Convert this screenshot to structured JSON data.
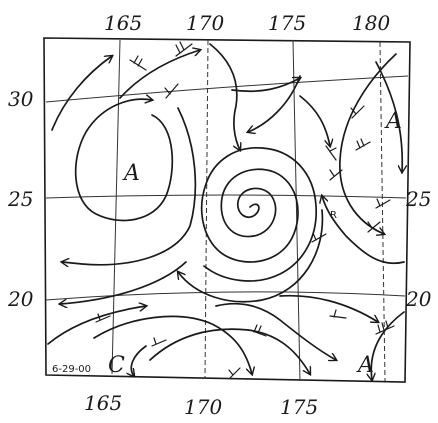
{
  "map": {
    "top_longitudes": [
      "165",
      "170",
      "175",
      "180"
    ],
    "bottom_longitudes": [
      "165",
      "170",
      "175"
    ],
    "left_latitudes": [
      "30",
      "25",
      "20"
    ],
    "right_latitudes": [
      "25",
      "20"
    ],
    "centers": [
      {
        "label": "A",
        "type": "anticyclone"
      },
      {
        "label": "A",
        "type": "anticyclone"
      },
      {
        "label": "A",
        "type": "anticyclone"
      },
      {
        "label": "C",
        "type": "cyclone"
      }
    ],
    "date_stamp": "6-29-00",
    "small_mark": "R",
    "line_color": "#1a1a1a",
    "background": "#ffffff"
  }
}
